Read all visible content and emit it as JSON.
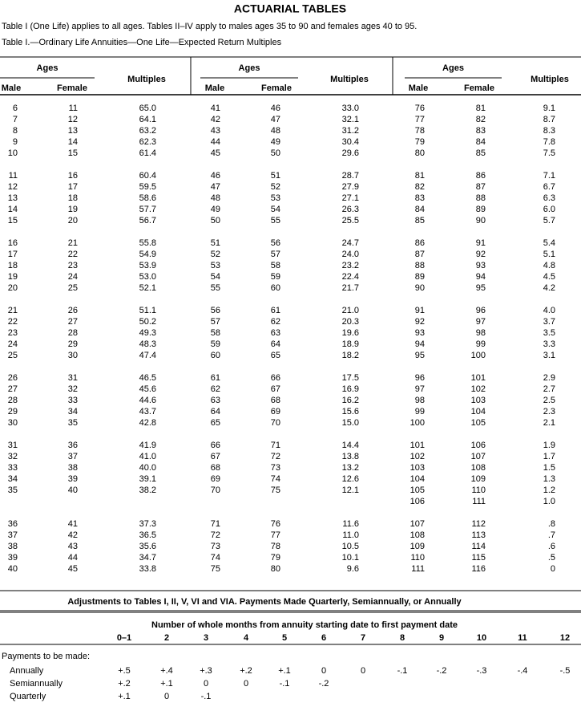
{
  "title": "ACTUARIAL TABLES",
  "intro": "Table I (One Life) applies to all ages. Tables II–IV apply to males ages 35 to 90 and females ages 40 to 95.",
  "table1": {
    "caption": "Table I.—Ordinary Life Annuities—One Life—Expected Return Multiples",
    "groups": [
      {
        "ages_label": "Ages",
        "male_label": "Male",
        "female_label": "Female",
        "multiples_label": "Multiples",
        "blocks": [
          [
            [
              6,
              11,
              "65.0"
            ],
            [
              7,
              12,
              "64.1"
            ],
            [
              8,
              13,
              "63.2"
            ],
            [
              9,
              14,
              "62.3"
            ],
            [
              10,
              15,
              "61.4"
            ]
          ],
          [
            [
              11,
              16,
              "60.4"
            ],
            [
              12,
              17,
              "59.5"
            ],
            [
              13,
              18,
              "58.6"
            ],
            [
              14,
              19,
              "57.7"
            ],
            [
              15,
              20,
              "56.7"
            ]
          ],
          [
            [
              16,
              21,
              "55.8"
            ],
            [
              17,
              22,
              "54.9"
            ],
            [
              18,
              23,
              "53.9"
            ],
            [
              19,
              24,
              "53.0"
            ],
            [
              20,
              25,
              "52.1"
            ]
          ],
          [
            [
              21,
              26,
              "51.1"
            ],
            [
              22,
              27,
              "50.2"
            ],
            [
              23,
              28,
              "49.3"
            ],
            [
              24,
              29,
              "48.3"
            ],
            [
              25,
              30,
              "47.4"
            ]
          ],
          [
            [
              26,
              31,
              "46.5"
            ],
            [
              27,
              32,
              "45.6"
            ],
            [
              28,
              33,
              "44.6"
            ],
            [
              29,
              34,
              "43.7"
            ],
            [
              30,
              35,
              "42.8"
            ]
          ],
          [
            [
              31,
              36,
              "41.9"
            ],
            [
              32,
              37,
              "41.0"
            ],
            [
              33,
              38,
              "40.0"
            ],
            [
              34,
              39,
              "39.1"
            ],
            [
              35,
              40,
              "38.2"
            ]
          ],
          [
            [
              36,
              41,
              "37.3"
            ],
            [
              37,
              42,
              "36.5"
            ],
            [
              38,
              43,
              "35.6"
            ],
            [
              39,
              44,
              "34.7"
            ],
            [
              40,
              45,
              "33.8"
            ]
          ]
        ]
      },
      {
        "ages_label": "Ages",
        "male_label": "Male",
        "female_label": "Female",
        "multiples_label": "Multiples",
        "blocks": [
          [
            [
              41,
              46,
              "33.0"
            ],
            [
              42,
              47,
              "32.1"
            ],
            [
              43,
              48,
              "31.2"
            ],
            [
              44,
              49,
              "30.4"
            ],
            [
              45,
              50,
              "29.6"
            ]
          ],
          [
            [
              46,
              51,
              "28.7"
            ],
            [
              47,
              52,
              "27.9"
            ],
            [
              48,
              53,
              "27.1"
            ],
            [
              49,
              54,
              "26.3"
            ],
            [
              50,
              55,
              "25.5"
            ]
          ],
          [
            [
              51,
              56,
              "24.7"
            ],
            [
              52,
              57,
              "24.0"
            ],
            [
              53,
              58,
              "23.2"
            ],
            [
              54,
              59,
              "22.4"
            ],
            [
              55,
              60,
              "21.7"
            ]
          ],
          [
            [
              56,
              61,
              "21.0"
            ],
            [
              57,
              62,
              "20.3"
            ],
            [
              58,
              63,
              "19.6"
            ],
            [
              59,
              64,
              "18.9"
            ],
            [
              60,
              65,
              "18.2"
            ]
          ],
          [
            [
              61,
              66,
              "17.5"
            ],
            [
              62,
              67,
              "16.9"
            ],
            [
              63,
              68,
              "16.2"
            ],
            [
              64,
              69,
              "15.6"
            ],
            [
              65,
              70,
              "15.0"
            ]
          ],
          [
            [
              66,
              71,
              "14.4"
            ],
            [
              67,
              72,
              "13.8"
            ],
            [
              68,
              73,
              "13.2"
            ],
            [
              69,
              74,
              "12.6"
            ],
            [
              70,
              75,
              "12.1"
            ]
          ],
          [
            [
              71,
              76,
              "11.6"
            ],
            [
              72,
              77,
              "11.0"
            ],
            [
              73,
              78,
              "10.5"
            ],
            [
              74,
              79,
              "10.1"
            ],
            [
              75,
              80,
              "9.6"
            ]
          ]
        ]
      },
      {
        "ages_label": "Ages",
        "male_label": "Male",
        "female_label": "Female",
        "multiples_label": "Multiples",
        "blocks": [
          [
            [
              76,
              81,
              "9.1"
            ],
            [
              77,
              82,
              "8.7"
            ],
            [
              78,
              83,
              "8.3"
            ],
            [
              79,
              84,
              "7.8"
            ],
            [
              80,
              85,
              "7.5"
            ]
          ],
          [
            [
              81,
              86,
              "7.1"
            ],
            [
              82,
              87,
              "6.7"
            ],
            [
              83,
              88,
              "6.3"
            ],
            [
              84,
              89,
              "6.0"
            ],
            [
              85,
              90,
              "5.7"
            ]
          ],
          [
            [
              86,
              91,
              "5.4"
            ],
            [
              87,
              92,
              "5.1"
            ],
            [
              88,
              93,
              "4.8"
            ],
            [
              89,
              94,
              "4.5"
            ],
            [
              90,
              95,
              "4.2"
            ]
          ],
          [
            [
              91,
              96,
              "4.0"
            ],
            [
              92,
              97,
              "3.7"
            ],
            [
              93,
              98,
              "3.5"
            ],
            [
              94,
              99,
              "3.3"
            ],
            [
              95,
              100,
              "3.1"
            ]
          ],
          [
            [
              96,
              101,
              "2.9"
            ],
            [
              97,
              102,
              "2.7"
            ],
            [
              98,
              103,
              "2.5"
            ],
            [
              99,
              104,
              "2.3"
            ],
            [
              100,
              105,
              "2.1"
            ]
          ],
          [
            [
              101,
              106,
              "1.9"
            ],
            [
              102,
              107,
              "1.7"
            ],
            [
              103,
              108,
              "1.5"
            ],
            [
              104,
              109,
              "1.3"
            ],
            [
              105,
              110,
              "1.2"
            ],
            [
              106,
              111,
              "1.0"
            ]
          ],
          [
            [
              107,
              112,
              ".8"
            ],
            [
              108,
              113,
              ".7"
            ],
            [
              109,
              114,
              ".6"
            ],
            [
              110,
              115,
              ".5"
            ],
            [
              111,
              116,
              "0"
            ]
          ]
        ]
      }
    ]
  },
  "adjustments": {
    "title": "Adjustments to Tables I, II, V, VI and VIA. Payments Made Quarterly, Semiannually, or Annually",
    "header": "Number of whole months from annuity starting date to first payment date",
    "columns": [
      "0–1",
      "2",
      "3",
      "4",
      "5",
      "6",
      "7",
      "8",
      "9",
      "10",
      "11",
      "12"
    ],
    "subheader": "Payments to be made:",
    "rows": [
      {
        "label": "Annually",
        "values": [
          "+.5",
          "+.4",
          "+.3",
          "+.2",
          "+.1",
          "0",
          "0",
          "-.1",
          "-.2",
          "-.3",
          "-.4",
          "-.5"
        ]
      },
      {
        "label": "Semiannually",
        "values": [
          "+.2",
          "+.1",
          "0",
          "0",
          "-.1",
          "-.2"
        ]
      },
      {
        "label": "Quarterly",
        "values": [
          "+.1",
          "0",
          "-.1"
        ]
      }
    ]
  }
}
